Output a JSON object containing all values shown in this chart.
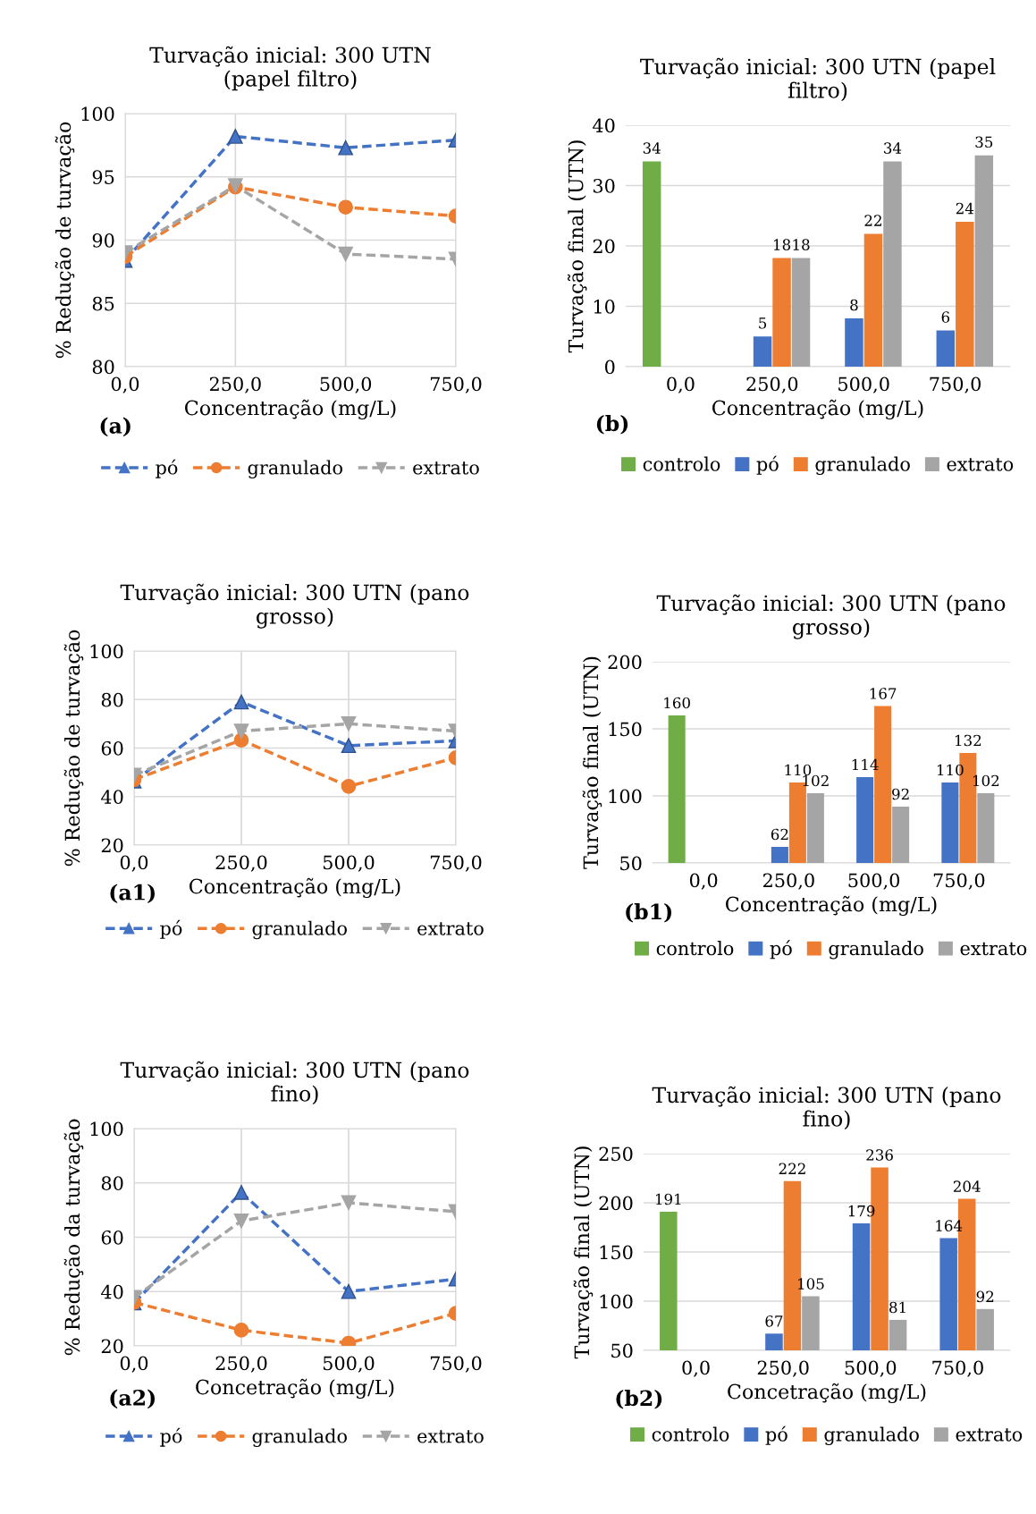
{
  "chart_data": [
    {
      "type": "line",
      "title": "Turvação inicial: 300 UTN\n(papel filtro)",
      "xlabel": "Concentração (mg/L)",
      "ylabel": "% Redução de turvação",
      "categories": [
        "0,0",
        "250,0",
        "500,0",
        "750,0"
      ],
      "ylim": [
        80,
        100
      ],
      "yticks": [
        80,
        85,
        90,
        95,
        100
      ],
      "grid": true,
      "legend": "bottom",
      "line_style": "dashed",
      "annotations": [
        "(a)"
      ],
      "series": [
        {
          "name": "pó",
          "color": "#4472c4",
          "marker": "triangle",
          "values": [
            88.4,
            98.2,
            97.3,
            97.9
          ]
        },
        {
          "name": "granulado",
          "color": "#ed7d31",
          "marker": "circle",
          "values": [
            88.7,
            94.2,
            92.6,
            91.9
          ]
        },
        {
          "name": "extrato",
          "color": "#a5a5a5",
          "marker": "triangle_down",
          "values": [
            89.0,
            94.3,
            88.9,
            88.5
          ]
        }
      ]
    },
    {
      "type": "bar",
      "title": "Turvação inicial: 300 UTN (papel\nfiltro)",
      "xlabel": "Concentração (mg/L)",
      "ylabel": "Turvação final (UTN)",
      "categories": [
        "0,0",
        "250,0",
        "500,0",
        "750,0"
      ],
      "ylim": [
        0,
        40
      ],
      "yticks": [
        0,
        10,
        20,
        30,
        40
      ],
      "grid": "y",
      "legend": "bottom",
      "data_labels": true,
      "annotations": [
        "(b)"
      ],
      "series": [
        {
          "name": "controlo",
          "color": "#70ad47",
          "values": [
            34,
            null,
            null,
            null
          ]
        },
        {
          "name": "pó",
          "color": "#4472c4",
          "values": [
            null,
            5,
            8,
            6
          ]
        },
        {
          "name": "granulado",
          "color": "#ed7d31",
          "values": [
            null,
            18,
            22,
            24
          ]
        },
        {
          "name": "extrato",
          "color": "#a5a5a5",
          "values": [
            null,
            18,
            34,
            35
          ]
        }
      ]
    },
    {
      "type": "line",
      "title": "Turvação inicial: 300 UTN (pano\ngrosso)",
      "xlabel": "Concentração (mg/L)",
      "ylabel": "% Redução de turvação",
      "categories": [
        "0,0",
        "250,0",
        "500,0",
        "750,0"
      ],
      "ylim": [
        20,
        100
      ],
      "yticks": [
        20,
        40,
        60,
        80,
        100
      ],
      "grid": true,
      "legend": "bottom",
      "line_style": "dashed",
      "annotations": [
        "(a1)"
      ],
      "series": [
        {
          "name": "pó",
          "color": "#4472c4",
          "marker": "triangle",
          "values": [
            46.4,
            79,
            61,
            63
          ]
        },
        {
          "name": "granulado",
          "color": "#ed7d31",
          "marker": "circle",
          "values": [
            47,
            63.3,
            44.2,
            56
          ]
        },
        {
          "name": "extrato",
          "color": "#a5a5a5",
          "marker": "triangle_down",
          "values": [
            48.8,
            67,
            70,
            67
          ]
        }
      ]
    },
    {
      "type": "bar",
      "title": "Turvação inicial: 300 UTN (pano\ngrosso)",
      "xlabel": "Concentração (mg/L)",
      "ylabel": "Turvação final (UTN)",
      "categories": [
        "0,0",
        "250,0",
        "500,0",
        "750,0"
      ],
      "ylim": [
        50,
        200
      ],
      "yticks": [
        50,
        100,
        150,
        200
      ],
      "grid": "y",
      "legend": "bottom",
      "data_labels": true,
      "annotations": [
        "(b1)"
      ],
      "series": [
        {
          "name": "controlo",
          "color": "#70ad47",
          "values": [
            160,
            null,
            null,
            null
          ]
        },
        {
          "name": "pó",
          "color": "#4472c4",
          "values": [
            null,
            62,
            114,
            110
          ]
        },
        {
          "name": "granulado",
          "color": "#ed7d31",
          "values": [
            null,
            110,
            167,
            132
          ]
        },
        {
          "name": "extrato",
          "color": "#a5a5a5",
          "values": [
            null,
            102,
            92,
            102
          ]
        }
      ]
    },
    {
      "type": "line",
      "title": "Turvação inicial: 300 UTN (pano\nfino)",
      "xlabel": "Concetração (mg/L)",
      "ylabel": "% Redução da turvação",
      "categories": [
        "0,0",
        "250,0",
        "500,0",
        "750,0"
      ],
      "ylim": [
        20,
        100
      ],
      "yticks": [
        20,
        40,
        60,
        80,
        100
      ],
      "grid": true,
      "legend": "bottom",
      "line_style": "dashed",
      "annotations": [
        "(a2)"
      ],
      "series": [
        {
          "name": "pó",
          "color": "#4472c4",
          "marker": "triangle",
          "values": [
            35.8,
            76.5,
            40,
            44.6
          ]
        },
        {
          "name": "granulado",
          "color": "#ed7d31",
          "marker": "circle",
          "values": [
            36,
            25.8,
            21,
            32
          ]
        },
        {
          "name": "extrato",
          "color": "#a5a5a5",
          "marker": "triangle_down",
          "values": [
            37.8,
            66,
            72.7,
            69.4
          ]
        }
      ]
    },
    {
      "type": "bar",
      "title": "Turvação inicial: 300 UTN (pano\nfino)",
      "xlabel": "Concetração (mg/L)",
      "ylabel": "Turvação final (UTN)",
      "categories": [
        "0,0",
        "250,0",
        "500,0",
        "750,0"
      ],
      "ylim": [
        50,
        250
      ],
      "yticks": [
        50,
        100,
        150,
        200,
        250
      ],
      "grid": "y",
      "legend": "bottom",
      "data_labels": true,
      "annotations": [
        "(b2)"
      ],
      "series": [
        {
          "name": "controlo",
          "color": "#70ad47",
          "values": [
            191,
            null,
            null,
            null
          ]
        },
        {
          "name": "pó",
          "color": "#4472c4",
          "values": [
            null,
            67,
            179,
            164
          ]
        },
        {
          "name": "granulado",
          "color": "#ed7d31",
          "values": [
            null,
            222,
            236,
            204
          ]
        },
        {
          "name": "extrato",
          "color": "#a5a5a5",
          "values": [
            null,
            105,
            81,
            92
          ]
        }
      ]
    }
  ]
}
